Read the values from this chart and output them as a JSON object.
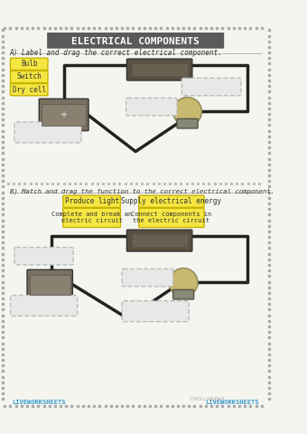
{
  "title": "ELECTRICAL COMPONENTS",
  "title_bg": "#5a5a5a",
  "title_color": "#ffffff",
  "bg_color": "#f5f5f0",
  "border_dot_color": "#aaaaaa",
  "section_a_label": "A) Label and drag the correct electrical component.",
  "section_b_label": "B) Match and drag the function to the correct electrical component.",
  "yellow_labels_a": [
    "Bulb",
    "Switch",
    "Dry cell"
  ],
  "yellow_color": "#f5e642",
  "yellow_border": "#c8b400",
  "yellow_labels_b_row1": [
    "Produce light",
    "Supply electrical energy"
  ],
  "yellow_labels_b_row2": [
    "Complete and break an\nelectric circuit",
    "Connect components in\nthe electric circuit"
  ],
  "dashed_box_color": "#bbbbbb",
  "dashed_box_fill": "#e8e8e8",
  "footer_left": "LIVEWORKSHEETS",
  "footer_right": "LIVEWORKSHEETS",
  "footer_color": "#3399cc",
  "watermark": "CIKGU ARIFAH",
  "section_line_color": "#888888"
}
